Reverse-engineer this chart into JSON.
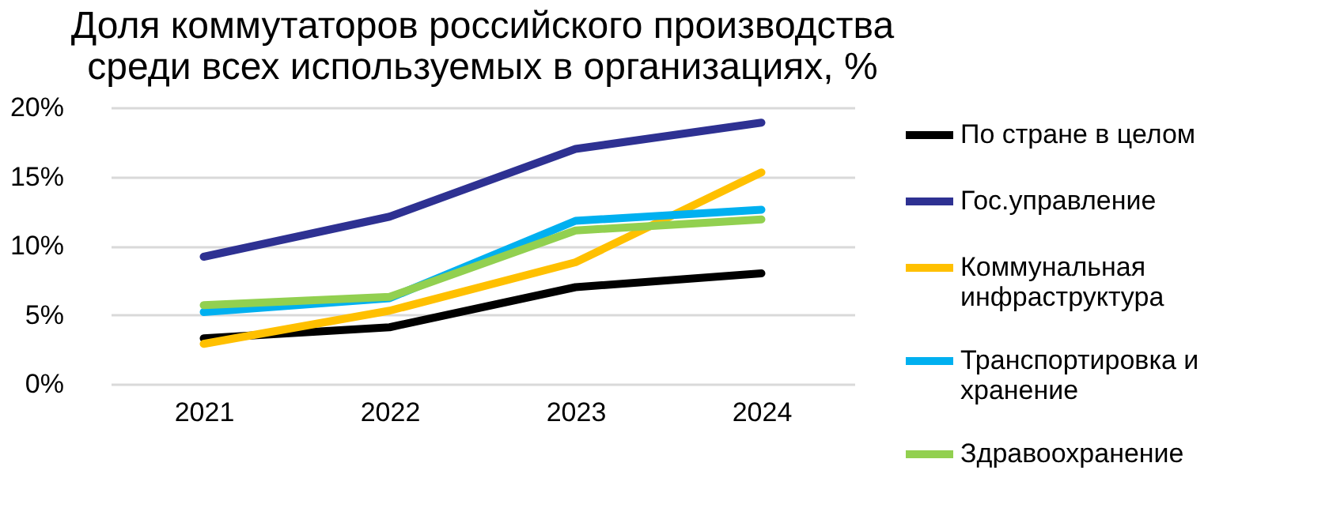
{
  "chart_data": {
    "type": "line",
    "title": "Доля коммутаторов российского производства среди всех используемых в организациях, %",
    "categories": [
      "2021",
      "2022",
      "2023",
      "2024"
    ],
    "series": [
      {
        "name": "По стране в целом",
        "color": "#000000",
        "values": [
          3.3,
          4.1,
          7.0,
          8.0
        ]
      },
      {
        "name": "Гос.управление",
        "color": "#2e3192",
        "values": [
          9.2,
          12.1,
          17.0,
          18.9
        ]
      },
      {
        "name": "Коммунальная инфраструктура",
        "color": "#ffc000",
        "values": [
          2.9,
          5.3,
          8.8,
          15.3
        ]
      },
      {
        "name": "Транспортировка и хранение",
        "color": "#00b0f0",
        "values": [
          5.2,
          6.2,
          11.8,
          12.6
        ]
      },
      {
        "name": "Здравоохранение",
        "color": "#92d050",
        "values": [
          5.7,
          6.3,
          11.1,
          11.9
        ]
      }
    ],
    "ylim": [
      0,
      20
    ],
    "yticks": [
      {
        "value": 0,
        "label": "0%"
      },
      {
        "value": 5,
        "label": "5%"
      },
      {
        "value": 10,
        "label": "10%"
      },
      {
        "value": 15,
        "label": "15%"
      },
      {
        "value": 20,
        "label": "20%"
      }
    ],
    "grid": "y",
    "legend": "right",
    "marker": "none",
    "line_style": "solid"
  }
}
